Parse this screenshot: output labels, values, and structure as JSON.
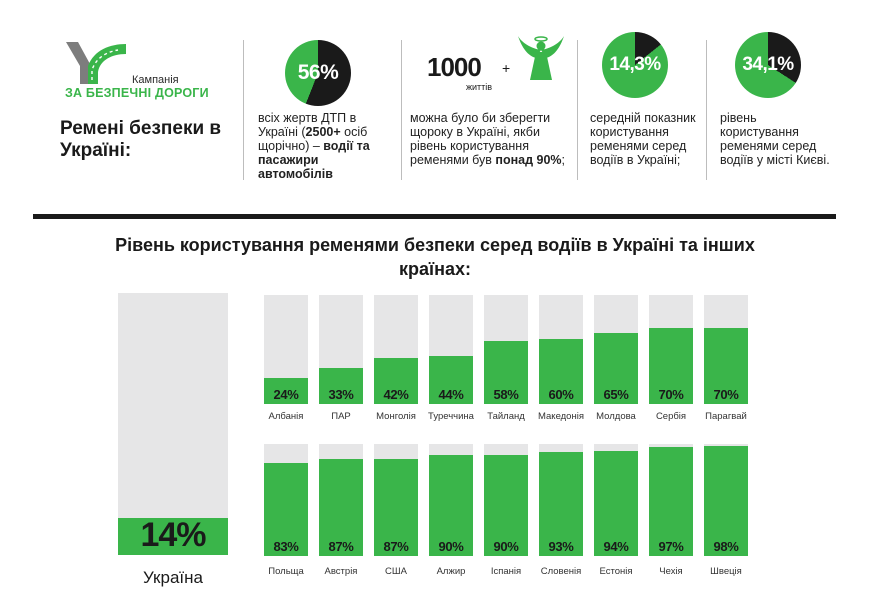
{
  "logo": {
    "small": "Кампанія",
    "main": "ЗА БЕЗПЕЧНІ ДОРОГИ"
  },
  "hero_title": "Ремені безпеки в Україні:",
  "stats": [
    {
      "circle": "56%",
      "text_parts": [
        "всіх жертв ДТП в Україні (",
        "2500+",
        " осіб щорічно) – ",
        "водії та пасажири автомобілів"
      ],
      "fraction": 0.56
    },
    {
      "big": "1000",
      "plus": "+",
      "sub": "життів",
      "text_parts": [
        "можна було би зберегти щороку в Україні, якби рівень користування ременями був ",
        "понад 90%",
        ";"
      ]
    },
    {
      "circle": "14,3%",
      "text": "середній показник користування ременями серед водіїв в Україні;",
      "fraction": 0.143
    },
    {
      "circle": "34,1%",
      "text": "рівень користування ременями серед водіїв у місті Києві.",
      "fraction": 0.341
    }
  ],
  "colors": {
    "green": "#3ab54a",
    "dark": "#1a1a1a",
    "track": "#e6e6e7"
  },
  "chart_data": {
    "type": "bar",
    "title": "Рівень користування ременями безпеки серед водіїв в Україні та інших країнах:",
    "ylim": [
      0,
      100
    ],
    "unit": "%",
    "highlight": {
      "category": "Україна",
      "value": 14,
      "label": "14%"
    },
    "rows": [
      {
        "categories": [
          "Албанія",
          "ПАР",
          "Монголія",
          "Туреччина",
          "Тайланд",
          "Македонія",
          "Молдова",
          "Сербія",
          "Парагвай"
        ],
        "values": [
          24,
          33,
          42,
          44,
          58,
          60,
          65,
          70,
          70
        ],
        "labels": [
          "24%",
          "33%",
          "42%",
          "44%",
          "58%",
          "60%",
          "65%",
          "70%",
          "70%"
        ]
      },
      {
        "categories": [
          "Польща",
          "Австрія",
          "США",
          "Алжир",
          "Іспанія",
          "Словенія",
          "Естонія",
          "Чехія",
          "Швеція"
        ],
        "values": [
          83,
          87,
          87,
          90,
          90,
          93,
          94,
          97,
          98
        ],
        "labels": [
          "83%",
          "87%",
          "87%",
          "90%",
          "90%",
          "93%",
          "94%",
          "97%",
          "98%"
        ]
      }
    ]
  }
}
